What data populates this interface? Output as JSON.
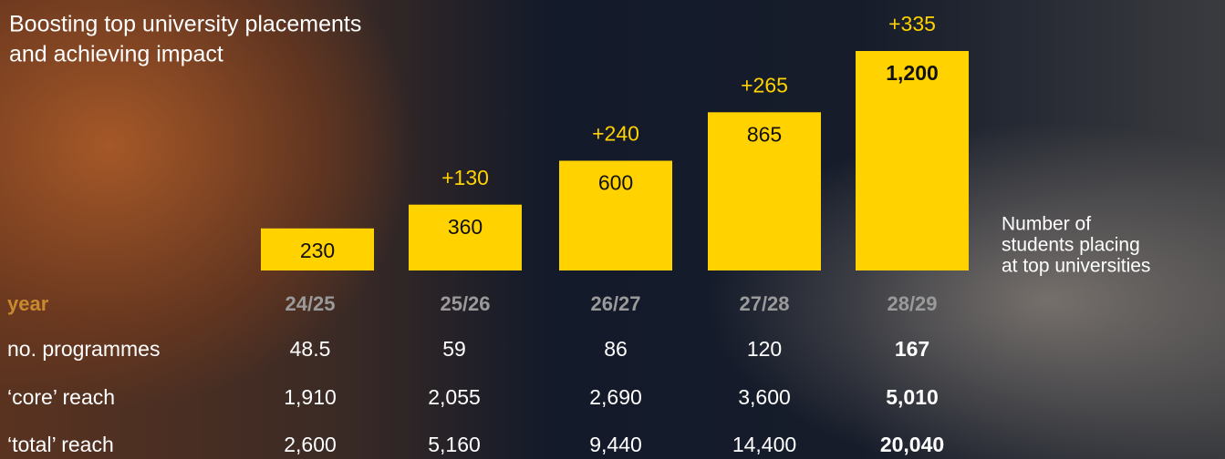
{
  "chart_data": {
    "type": "bar",
    "title": [
      "Boosting top university placements",
      "and achieving impact"
    ],
    "categories": [
      "24/25",
      "25/26",
      "26/27",
      "27/28",
      "28/29"
    ],
    "values": [
      230,
      360,
      600,
      865,
      1200
    ],
    "value_labels": [
      "230",
      "360",
      "600",
      "865",
      "1,200"
    ],
    "increments": [
      null,
      "+130",
      "+240",
      "+265",
      "+335"
    ],
    "color": "#ffd200",
    "side_label": [
      "Number of",
      "students placing",
      "at top universities"
    ]
  },
  "table": {
    "header": "year",
    "rows": [
      {
        "label": "no. programmes",
        "cells": [
          "48.5",
          "59",
          "86",
          "120",
          "167"
        ]
      },
      {
        "label": "‘core’ reach",
        "cells": [
          "1,910",
          "2,055",
          "2,690",
          "3,600",
          "5,010"
        ]
      },
      {
        "label": "‘total’ reach",
        "cells": [
          "2,600",
          "5,160",
          "9,440",
          "14,400",
          "20,040"
        ]
      }
    ]
  }
}
